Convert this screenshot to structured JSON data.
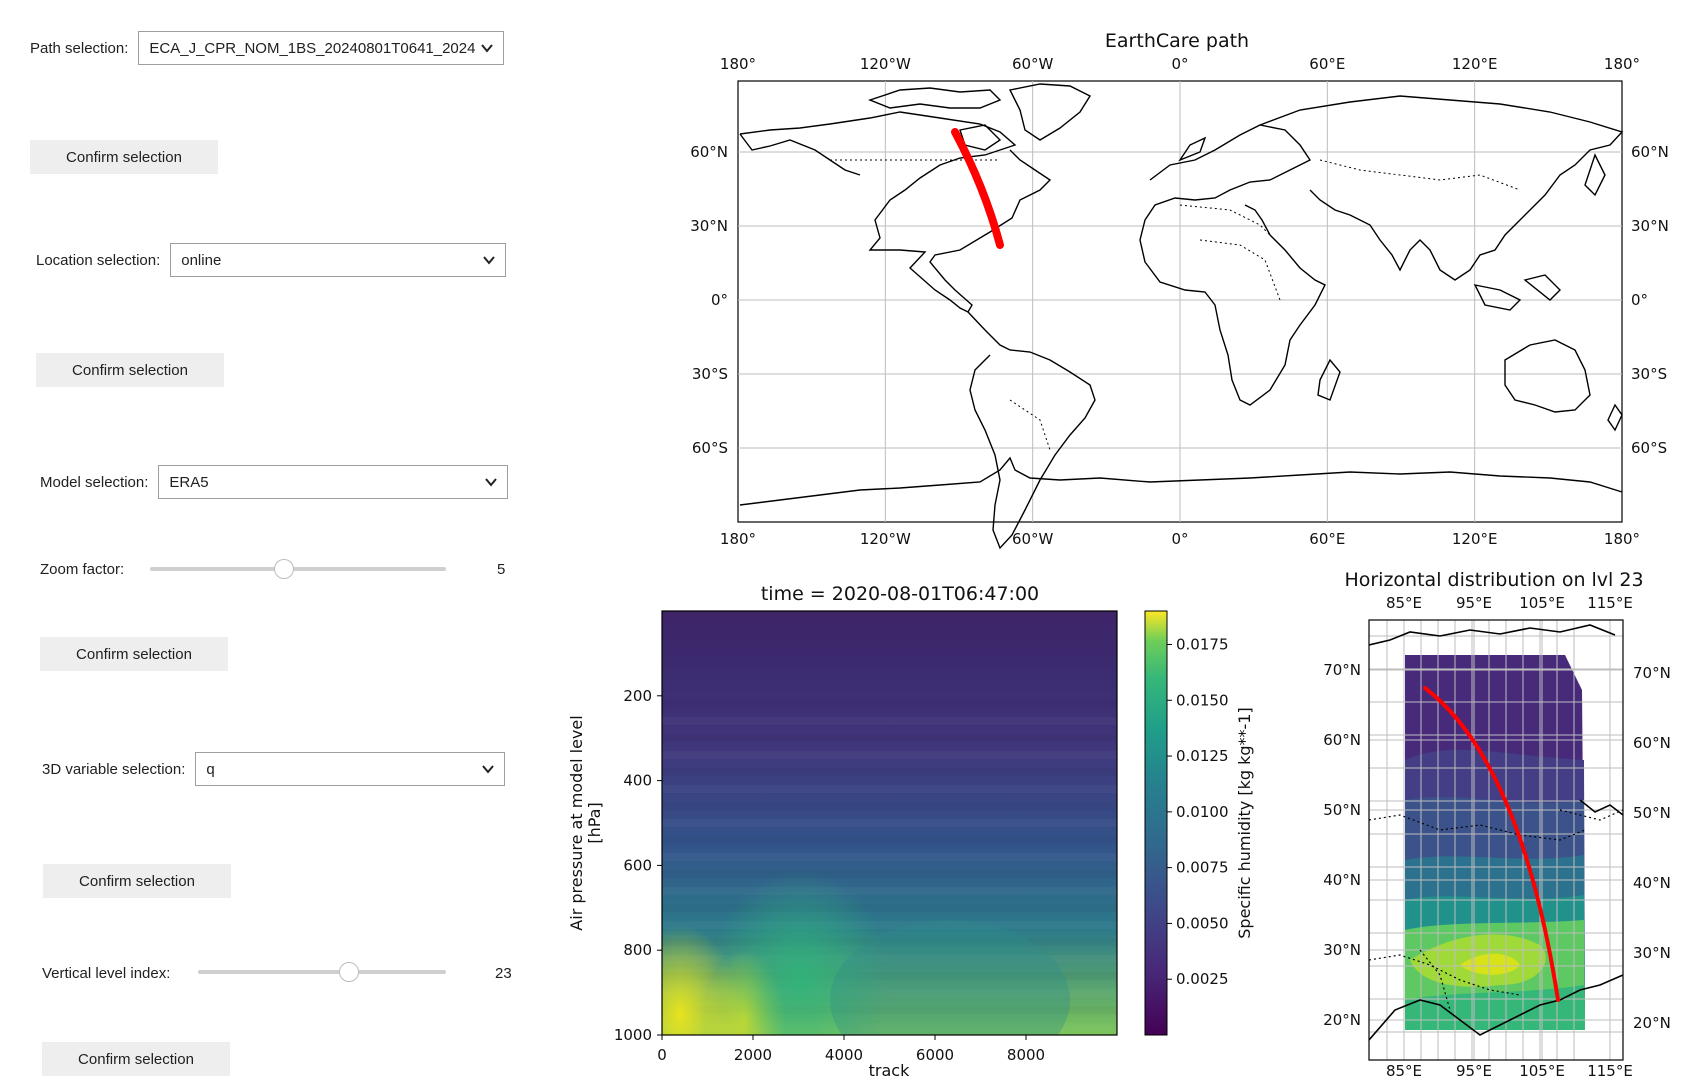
{
  "controls": {
    "path": {
      "label": "Path selection:",
      "value": "ECA_J_CPR_NOM_1BS_20240801T0641_2024"
    },
    "confirm1": "Confirm selection",
    "location": {
      "label": "Location selection:",
      "value": "online"
    },
    "confirm2": "Confirm selection",
    "model": {
      "label": "Model selection:",
      "value": "ERA5"
    },
    "zoom": {
      "label": "Zoom factor:",
      "value": "5",
      "fraction": 0.45
    },
    "confirm3": "Confirm selection",
    "var3d": {
      "label": "3D variable selection:",
      "value": "q"
    },
    "confirm4": "Confirm selection",
    "level": {
      "label": "Vertical level index:",
      "value": "23",
      "fraction": 0.62
    },
    "confirm5": "Confirm selection"
  },
  "map_plot": {
    "title": "EarthCare path",
    "lon_ticks": [
      "180°",
      "120°W",
      "60°W",
      "0°",
      "60°E",
      "120°E",
      "180°"
    ],
    "lat_ticks": [
      "60°N",
      "30°N",
      "0°",
      "30°S",
      "60°S"
    ],
    "path_color": "#ff0000"
  },
  "chart_data": [
    {
      "type": "heatmap",
      "title": "time = 2020-08-01T06:47:00",
      "xlabel": "track",
      "ylabel_line1": "Air pressure at model level",
      "ylabel_line2": "[hPa]",
      "xlim": [
        0,
        10000
      ],
      "ylim": [
        1000,
        0
      ],
      "x_ticks": [
        "0",
        "2000",
        "4000",
        "6000",
        "8000"
      ],
      "y_ticks": [
        "200",
        "400",
        "600",
        "800",
        "1000"
      ],
      "colorbar": {
        "label": "Specific humidity [kg kg**-1]",
        "range": [
          0,
          0.019
        ],
        "ticks": [
          "0.0025",
          "0.0050",
          "0.0075",
          "0.0100",
          "0.0125",
          "0.0150",
          "0.0175"
        ],
        "colormap": "viridis"
      }
    },
    {
      "type": "contour-map",
      "title": "Horizontal distribution on lvl 23",
      "lon_ticks": [
        "85°E",
        "95°E",
        "105°E",
        "115°E"
      ],
      "lat_ticks": [
        "70°N",
        "60°N",
        "50°N",
        "40°N",
        "30°N",
        "20°N"
      ],
      "path_color": "#ff0000"
    }
  ]
}
